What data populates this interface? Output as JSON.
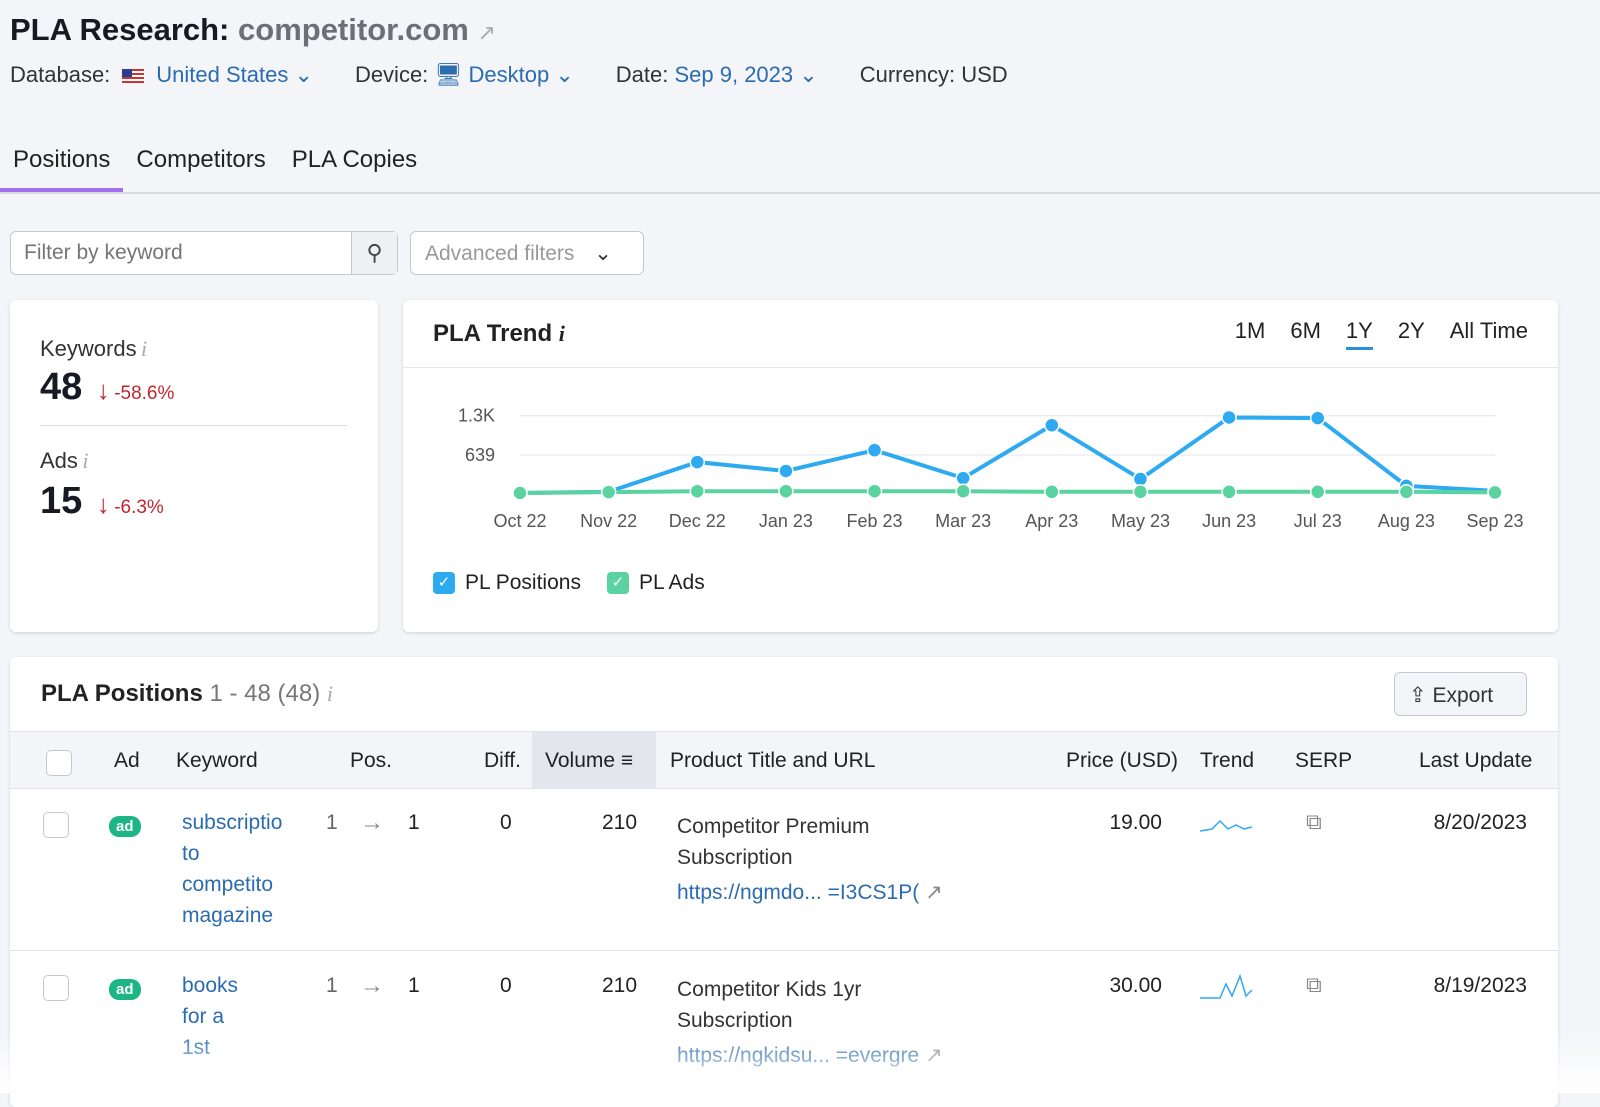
{
  "header": {
    "title": "PLA Research:",
    "domain": "competitor.com",
    "database_label": "Database:",
    "database": "United States",
    "device_label": "Device:",
    "device": "Desktop",
    "date_label": "Date:",
    "date": "Sep 9, 2023",
    "currency_label": "Currency:",
    "currency": "USD"
  },
  "tabs": [
    "Positions",
    "Competitors",
    "PLA Copies"
  ],
  "filters": {
    "placeholder": "Filter by keyword",
    "advanced": "Advanced filters"
  },
  "kpis": {
    "keywords_label": "Keywords",
    "keywords": "48",
    "keywords_change": "-58.6%",
    "ads_label": "Ads",
    "ads": "15",
    "ads_change": "-6.3%"
  },
  "trend": {
    "title": "PLA Trend",
    "ranges": [
      "1M",
      "6M",
      "1Y",
      "2Y",
      "All Time"
    ],
    "active_range": "1Y"
  },
  "chart_data": {
    "type": "line",
    "title": "PLA Trend",
    "categories": [
      "Oct 22",
      "Nov 22",
      "Dec 22",
      "Jan 23",
      "Feb 23",
      "Mar 23",
      "Apr 23",
      "May 23",
      "Jun 23",
      "Jul 23",
      "Aug 23",
      "Sep 23"
    ],
    "yticks": [
      "639",
      "1.3K"
    ],
    "ylim": [
      0,
      1300
    ],
    "series": [
      {
        "name": "PL Positions",
        "color": "#2daaf0",
        "values": [
          0,
          20,
          520,
          370,
          720,
          250,
          1140,
          235,
          1270,
          1260,
          120,
          35
        ]
      },
      {
        "name": "PL Ads",
        "color": "#5ad3a0",
        "values": [
          0,
          15,
          30,
          30,
          30,
          30,
          20,
          20,
          20,
          20,
          20,
          10
        ]
      }
    ],
    "legend": "bottom-left",
    "grid": true
  },
  "positions": {
    "title": "PLA Positions",
    "range": "1 - 48 (48)",
    "export": "Export",
    "columns": [
      "Ad",
      "Keyword",
      "Pos.",
      "Diff.",
      "Volume",
      "Product Title and URL",
      "Price (USD)",
      "Trend",
      "SERP",
      "Last Update"
    ],
    "rows": [
      {
        "ad": "ad",
        "keyword": [
          "subscriptio",
          "to",
          "competito",
          "magazine"
        ],
        "pos_from": "1",
        "pos_to": "1",
        "diff": "0",
        "volume": "210",
        "title": [
          "Competitor Premium",
          "Subscription"
        ],
        "url": "https://ngmdo...  =I3CS1P(",
        "price": "19.00",
        "updated": "8/20/2023"
      },
      {
        "ad": "ad",
        "keyword": [
          "books",
          "for a",
          "1st"
        ],
        "pos_from": "1",
        "pos_to": "1",
        "diff": "0",
        "volume": "210",
        "title": [
          "Competitor Kids 1yr",
          "Subscription"
        ],
        "url": "https://ngkidsu...  =evergre",
        "price": "30.00",
        "updated": "8/19/2023"
      }
    ]
  }
}
